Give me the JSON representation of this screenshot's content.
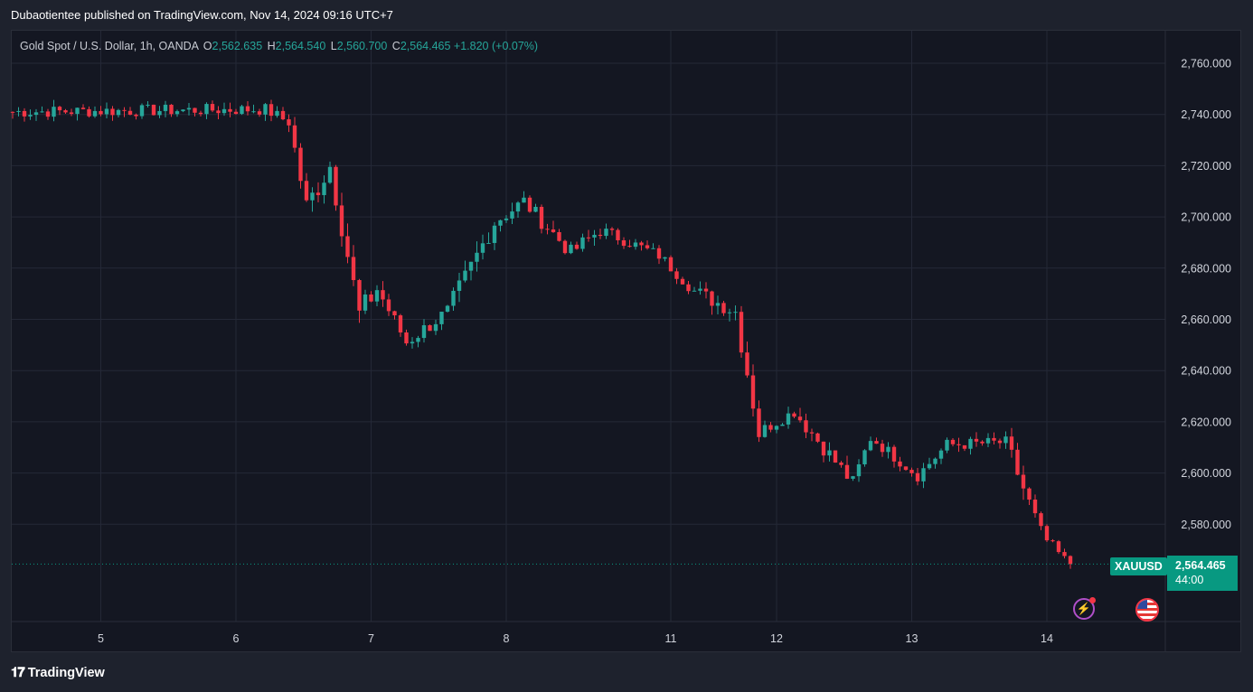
{
  "header": {
    "published_line": "Dubaotientee published on TradingView.com, Nov 14, 2024 09:16 UTC+7"
  },
  "legend": {
    "symbol": "Gold Spot / U.S. Dollar, 1h, OANDA",
    "o_label": "O",
    "o_value": "2,562.635",
    "h_label": "H",
    "h_value": "2,564.540",
    "l_label": "L",
    "l_value": "2,560.700",
    "c_label": "C",
    "c_value": "2,564.465",
    "change": "+1.820 (+0.07%)"
  },
  "price_badge": {
    "symbol": "XAUUSD",
    "price": "2,564.465",
    "countdown": "44:00"
  },
  "footer": {
    "brand": "TradingView"
  },
  "icons": {
    "alert": "lightning-bolt-icon",
    "event": "us-flag-icon",
    "brand": "tradingview-logo-icon"
  },
  "colors": {
    "up": "#26a69a",
    "down": "#f23645",
    "background": "#141722",
    "grid": "#242837",
    "badge": "#089981"
  },
  "chart_data": {
    "type": "candlestick",
    "symbol": "XAUUSD",
    "timeframe": "1h",
    "ylim": [
      2540,
      2772
    ],
    "y_ticks": [
      2580,
      2600,
      2620,
      2640,
      2660,
      2680,
      2700,
      2720,
      2740,
      2760
    ],
    "y_tick_labels": [
      "2,580.000",
      "2,600.000",
      "2,620.000",
      "2,640.000",
      "2,660.000",
      "2,680.000",
      "2,700.000",
      "2,720.000",
      "2,740.000",
      "2,760.000"
    ],
    "x_ticks": [
      {
        "index": 15,
        "label": "5"
      },
      {
        "index": 38,
        "label": "6"
      },
      {
        "index": 61,
        "label": "7"
      },
      {
        "index": 84,
        "label": "8"
      },
      {
        "index": 112,
        "label": "11"
      },
      {
        "index": 130,
        "label": "12"
      },
      {
        "index": 153,
        "label": "13"
      },
      {
        "index": 176,
        "label": "14"
      }
    ],
    "last_price": 2564.465,
    "segments": [
      {
        "from": 0,
        "to": 44,
        "start": 2741,
        "end": 2742,
        "vol": 3
      },
      {
        "from": 44,
        "to": 48,
        "start": 2742,
        "end": 2737,
        "vol": 3
      },
      {
        "from": 48,
        "to": 51,
        "start": 2737,
        "end": 2704,
        "vol": 6
      },
      {
        "from": 51,
        "to": 55,
        "start": 2704,
        "end": 2720,
        "vol": 6
      },
      {
        "from": 55,
        "to": 60,
        "start": 2720,
        "end": 2662,
        "vol": 6
      },
      {
        "from": 60,
        "to": 63,
        "start": 2662,
        "end": 2672,
        "vol": 6
      },
      {
        "from": 63,
        "to": 68,
        "start": 2672,
        "end": 2651,
        "vol": 4
      },
      {
        "from": 68,
        "to": 75,
        "start": 2651,
        "end": 2663,
        "vol": 4
      },
      {
        "from": 75,
        "to": 83,
        "start": 2663,
        "end": 2698,
        "vol": 5
      },
      {
        "from": 83,
        "to": 88,
        "start": 2698,
        "end": 2706,
        "vol": 4
      },
      {
        "from": 88,
        "to": 96,
        "start": 2706,
        "end": 2686,
        "vol": 4
      },
      {
        "from": 96,
        "to": 101,
        "start": 2686,
        "end": 2695,
        "vol": 4
      },
      {
        "from": 101,
        "to": 111,
        "start": 2695,
        "end": 2685,
        "vol": 3
      },
      {
        "from": 111,
        "to": 117,
        "start": 2685,
        "end": 2671,
        "vol": 3
      },
      {
        "from": 117,
        "to": 124,
        "start": 2671,
        "end": 2663,
        "vol": 4
      },
      {
        "from": 124,
        "to": 128,
        "start": 2663,
        "end": 2616,
        "vol": 6
      },
      {
        "from": 128,
        "to": 134,
        "start": 2616,
        "end": 2624,
        "vol": 3
      },
      {
        "from": 134,
        "to": 144,
        "start": 2624,
        "end": 2596,
        "vol": 4
      },
      {
        "from": 144,
        "to": 147,
        "start": 2596,
        "end": 2614,
        "vol": 4
      },
      {
        "from": 147,
        "to": 155,
        "start": 2614,
        "end": 2599,
        "vol": 3
      },
      {
        "from": 155,
        "to": 160,
        "start": 2599,
        "end": 2611,
        "vol": 3
      },
      {
        "from": 160,
        "to": 170,
        "start": 2611,
        "end": 2612,
        "vol": 3
      },
      {
        "from": 170,
        "to": 176,
        "start": 2612,
        "end": 2576,
        "vol": 5
      },
      {
        "from": 176,
        "to": 181,
        "start": 2576,
        "end": 2563.5,
        "vol": 3
      }
    ]
  }
}
